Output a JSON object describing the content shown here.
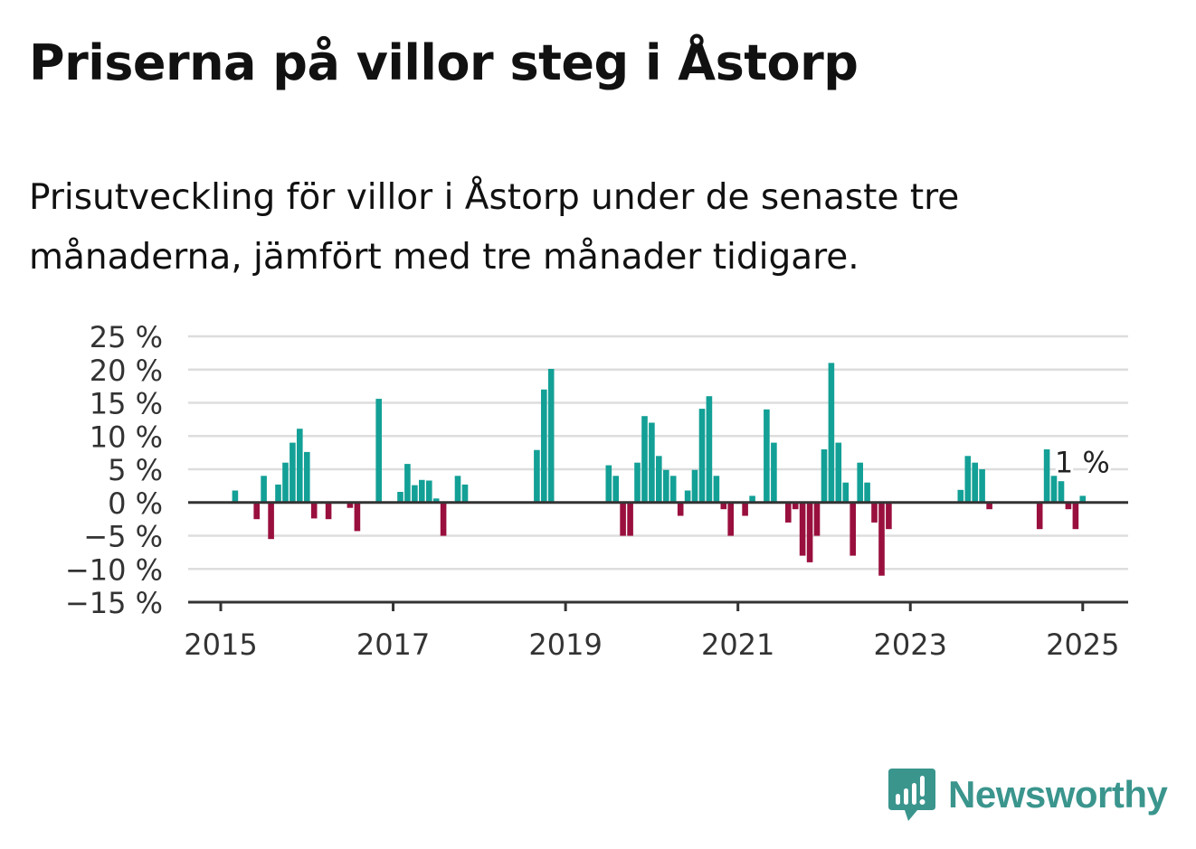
{
  "title": "Priserna på villor steg i Åstorp",
  "subtitle": "Prisutveckling för villor i Åstorp under de senaste tre månaderna, jämfört med tre månader tidigare.",
  "brand": {
    "name": "Newsworthy",
    "icon": "newsworthy-logo-icon",
    "color": "#3a958d"
  },
  "chart_data": {
    "type": "bar",
    "x_unit": "month",
    "x_ticks": [
      "2015",
      "2017",
      "2019",
      "2021",
      "2023",
      "2025"
    ],
    "y_ticks": [
      "25 %",
      "20 %",
      "15 %",
      "10 %",
      "5 %",
      "0 %",
      "−5 %",
      "−10 %",
      "−15 %"
    ],
    "ylim": [
      -15,
      25
    ],
    "grid": true,
    "colors": {
      "positive": "#13a096",
      "negative": "#990f3d"
    },
    "annotation": {
      "label": "1 %",
      "date": "2025-01"
    },
    "values": [
      [
        "2015-03",
        1.8
      ],
      [
        "2015-06",
        -2.5
      ],
      [
        "2015-07",
        4.0
      ],
      [
        "2015-08",
        -5.5
      ],
      [
        "2015-09",
        2.7
      ],
      [
        "2015-10",
        6.0
      ],
      [
        "2015-11",
        9.0
      ],
      [
        "2015-12",
        11.1
      ],
      [
        "2016-01",
        7.6
      ],
      [
        "2016-02",
        -2.4
      ],
      [
        "2016-04",
        -2.5
      ],
      [
        "2016-07",
        -0.8
      ],
      [
        "2016-08",
        -4.3
      ],
      [
        "2016-11",
        15.6
      ],
      [
        "2017-02",
        1.6
      ],
      [
        "2017-03",
        5.8
      ],
      [
        "2017-04",
        2.6
      ],
      [
        "2017-05",
        3.4
      ],
      [
        "2017-06",
        3.3
      ],
      [
        "2017-07",
        0.6
      ],
      [
        "2017-08",
        -5.0
      ],
      [
        "2017-10",
        4.0
      ],
      [
        "2017-11",
        2.7
      ],
      [
        "2018-09",
        7.9
      ],
      [
        "2018-10",
        17.0
      ],
      [
        "2018-11",
        20.1
      ],
      [
        "2019-07",
        5.6
      ],
      [
        "2019-08",
        4.0
      ],
      [
        "2019-09",
        -5.0
      ],
      [
        "2019-10",
        -5.0
      ],
      [
        "2019-11",
        6.0
      ],
      [
        "2019-12",
        13.0
      ],
      [
        "2020-01",
        12.0
      ],
      [
        "2020-02",
        7.0
      ],
      [
        "2020-03",
        4.9
      ],
      [
        "2020-04",
        4.0
      ],
      [
        "2020-05",
        -2.0
      ],
      [
        "2020-06",
        1.8
      ],
      [
        "2020-07",
        4.9
      ],
      [
        "2020-08",
        14.1
      ],
      [
        "2020-09",
        16.0
      ],
      [
        "2020-10",
        4.0
      ],
      [
        "2020-11",
        -1.0
      ],
      [
        "2020-12",
        -5.0
      ],
      [
        "2021-02",
        -2.0
      ],
      [
        "2021-03",
        1.0
      ],
      [
        "2021-05",
        14.0
      ],
      [
        "2021-06",
        9.0
      ],
      [
        "2021-08",
        -3.0
      ],
      [
        "2021-09",
        -1.0
      ],
      [
        "2021-10",
        -8.0
      ],
      [
        "2021-11",
        -9.0
      ],
      [
        "2021-12",
        -5.0
      ],
      [
        "2022-01",
        8.0
      ],
      [
        "2022-02",
        21.0
      ],
      [
        "2022-03",
        9.0
      ],
      [
        "2022-04",
        3.0
      ],
      [
        "2022-05",
        -8.0
      ],
      [
        "2022-06",
        6.0
      ],
      [
        "2022-07",
        3.0
      ],
      [
        "2022-08",
        -3.0
      ],
      [
        "2022-09",
        -11.0
      ],
      [
        "2022-10",
        -4.0
      ],
      [
        "2023-08",
        1.9
      ],
      [
        "2023-09",
        7.0
      ],
      [
        "2023-10",
        6.0
      ],
      [
        "2023-11",
        5.0
      ],
      [
        "2023-12",
        -1.0
      ],
      [
        "2024-07",
        -4.0
      ],
      [
        "2024-08",
        8.0
      ],
      [
        "2024-09",
        4.0
      ],
      [
        "2024-10",
        3.2
      ],
      [
        "2024-11",
        -1.0
      ],
      [
        "2024-12",
        -4.0
      ],
      [
        "2025-01",
        1.0
      ]
    ]
  }
}
